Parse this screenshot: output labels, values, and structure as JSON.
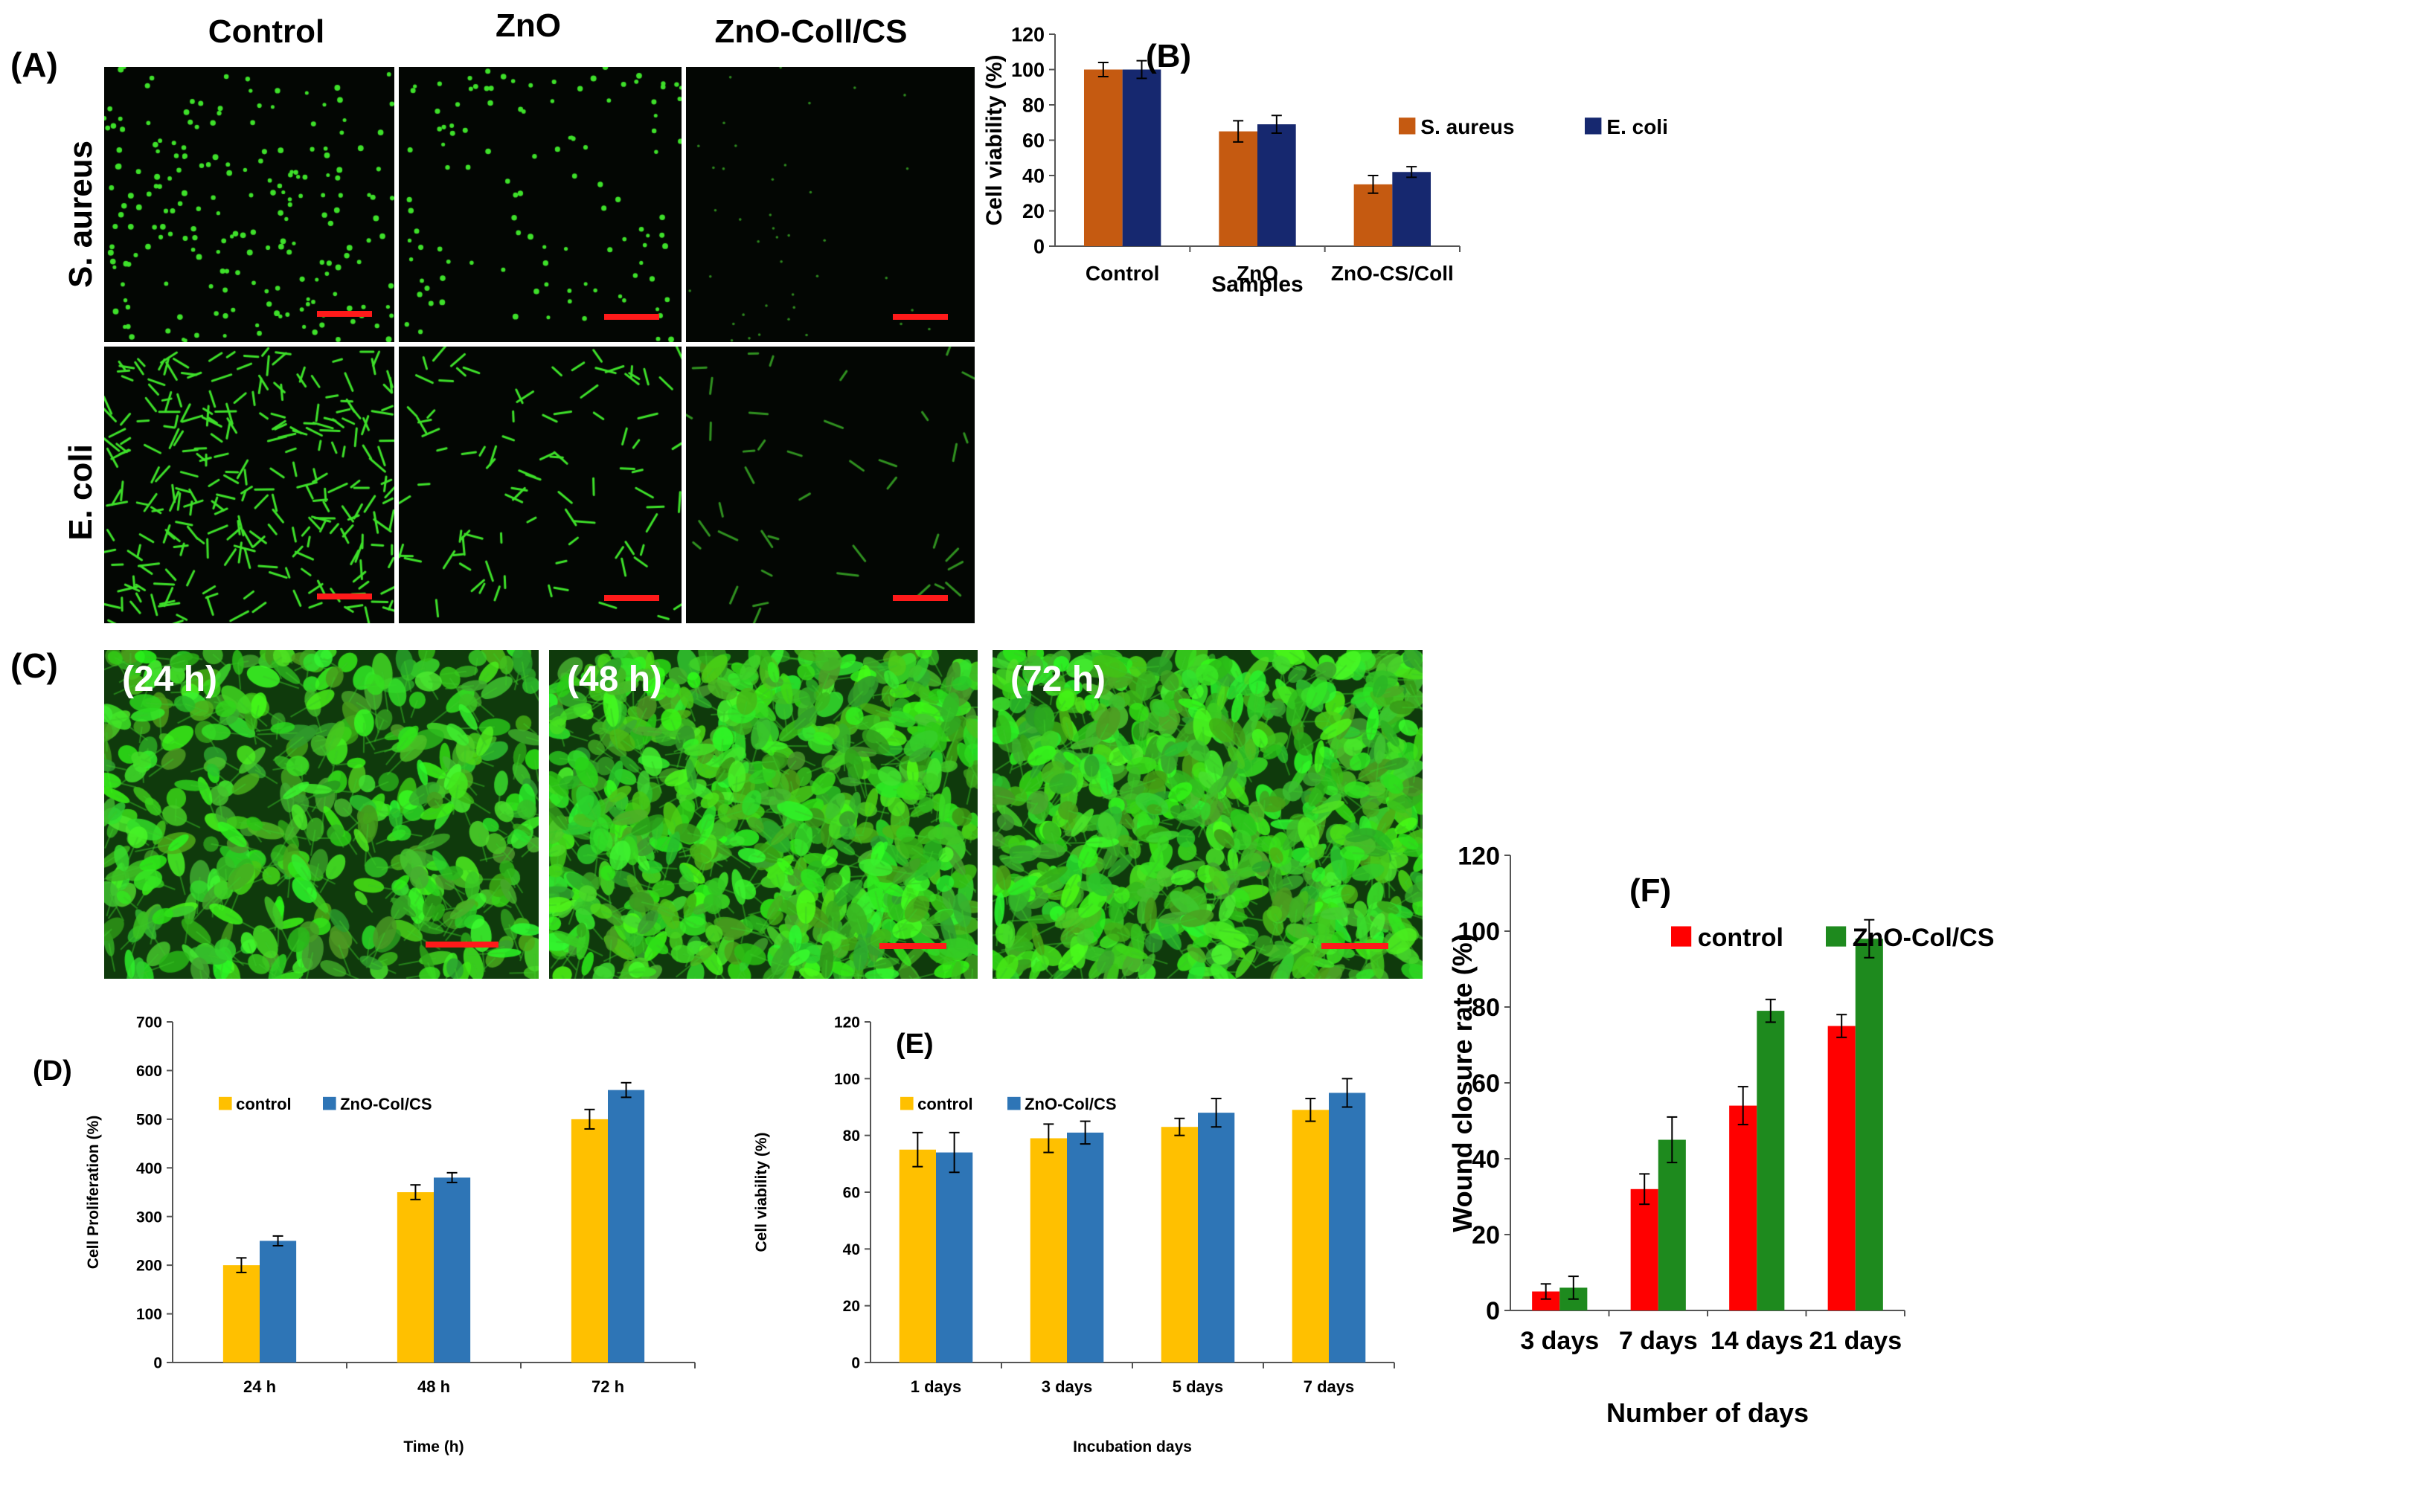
{
  "panel_a": {
    "label": "(A)",
    "columns": [
      "Control",
      "ZnO",
      "ZnO-Coll/CS"
    ],
    "rows": [
      "S. aureus",
      "E. coli"
    ]
  },
  "panel_c": {
    "label": "(C)",
    "times": [
      "(24 h)",
      "(48 h)",
      "(72 h)"
    ]
  },
  "colors": {
    "s_aureus": "#c55a11",
    "e_coli": "#16286f",
    "control_yellow": "#ffc000",
    "zno_blue": "#2e75b6",
    "control_red": "#ff0000",
    "zno_green": "#1e8a1e",
    "fluor_green": "#3ee02a",
    "scale_red": "#ff1a1a"
  },
  "chart_data": [
    {
      "id": "B",
      "label": "(B)",
      "type": "bar",
      "categories": [
        "Control",
        "ZnO",
        "ZnO-CS/Coll"
      ],
      "series": [
        {
          "name": "S. aureus",
          "values": [
            100,
            65,
            35
          ],
          "errors": [
            4,
            6,
            5
          ]
        },
        {
          "name": "E. coli",
          "values": [
            100,
            69,
            42
          ],
          "errors": [
            5,
            5,
            3
          ]
        }
      ],
      "xlabel": "Samples",
      "ylabel": "Cell viability (%)",
      "ylim": [
        0,
        120
      ],
      "yticks": [
        0,
        20,
        40,
        60,
        80,
        100,
        120
      ],
      "legend": "top-center"
    },
    {
      "id": "D",
      "label": "(D)",
      "type": "bar",
      "categories": [
        "24 h",
        "48 h",
        "72 h"
      ],
      "series": [
        {
          "name": "control",
          "values": [
            200,
            350,
            500
          ],
          "errors": [
            15,
            15,
            20
          ]
        },
        {
          "name": "ZnO-Col/CS",
          "values": [
            250,
            380,
            560
          ],
          "errors": [
            10,
            10,
            15
          ]
        }
      ],
      "xlabel": "Time (h)",
      "ylabel": "Cell Proliferation (%)",
      "ylim": [
        0,
        700
      ],
      "yticks": [
        0,
        100,
        200,
        300,
        400,
        500,
        600,
        700
      ],
      "legend": "top-left"
    },
    {
      "id": "E",
      "label": "(E)",
      "type": "bar",
      "categories": [
        "1 days",
        "3 days",
        "5 days",
        "7 days"
      ],
      "series": [
        {
          "name": "control",
          "values": [
            75,
            79,
            83,
            89
          ],
          "errors": [
            6,
            5,
            3,
            4
          ]
        },
        {
          "name": "ZnO-Col/CS",
          "values": [
            74,
            81,
            88,
            95
          ],
          "errors": [
            7,
            4,
            5,
            5
          ]
        }
      ],
      "xlabel": "Incubation days",
      "ylabel": "Cell viability (%)",
      "ylim": [
        0,
        120
      ],
      "yticks": [
        0,
        20,
        40,
        60,
        80,
        100,
        120
      ],
      "legend": "top-left"
    },
    {
      "id": "F",
      "label": "(F)",
      "type": "bar",
      "categories": [
        "3 days",
        "7 days",
        "14 days",
        "21 days"
      ],
      "series": [
        {
          "name": "control",
          "values": [
            5,
            32,
            54,
            75
          ],
          "errors": [
            2,
            4,
            5,
            3
          ]
        },
        {
          "name": "ZnO-Col/CS",
          "values": [
            6,
            45,
            79,
            98
          ],
          "errors": [
            3,
            6,
            3,
            5
          ]
        }
      ],
      "xlabel": "Number of days",
      "ylabel": "Wound closure rate (%)",
      "ylim": [
        0,
        120
      ],
      "yticks": [
        0,
        20,
        40,
        60,
        80,
        100,
        120
      ],
      "legend": "top-left"
    }
  ]
}
